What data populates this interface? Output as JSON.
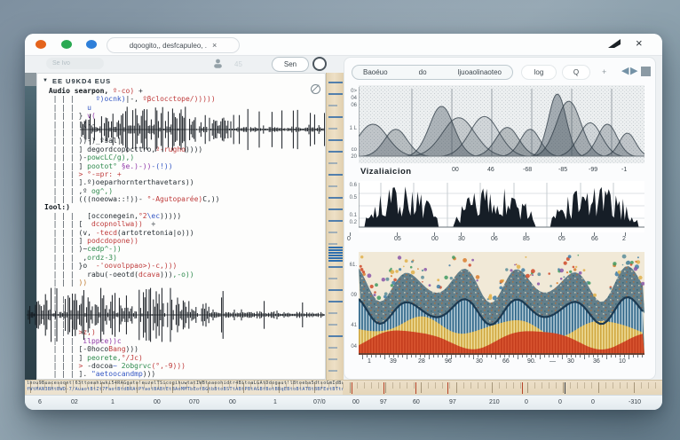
{
  "titlebar": {
    "tab_label": "dqoogito,, desfcapuleo, .",
    "tab_close": "×",
    "close_label": "×"
  },
  "left_panel": {
    "search_label": "Se Ivo",
    "badge": "45",
    "run_button": "Sen",
    "explorer_header": "EE U9KD4 EUS",
    "explorer_arrow": "▼",
    "code_lines": [
      [
        [
          " Audio searpon,",
          "b"
        ],
        [
          " º-co) ",
          "r"
        ],
        [
          "+",
          "d"
        ]
      ],
      [
        [
          "  | | |",
          "p"
        ],
        [
          "     ",
          "d"
        ],
        [
          "º)ocnk)",
          "bl"
        ],
        [
          "|-, ",
          "d"
        ],
        [
          "ºβclocctope/)))))",
          "r"
        ]
      ],
      [
        [
          "  | | |",
          "p"
        ],
        [
          "   ",
          "d"
        ],
        [
          "u",
          "bl"
        ]
      ],
      [
        [
          "  | | |",
          "p"
        ],
        [
          " } ",
          "d"
        ],
        [
          "v(",
          "pu"
        ]
      ],
      [
        [
          "  | | |",
          "p"
        ],
        [
          " [(--",
          "d"
        ]
      ],
      [
        [
          "  | | |",
          "p"
        ]
      ],
      [
        [
          "  | | |",
          "p"
        ],
        [
          " ))-)",
          "d"
        ],
        [
          "_ºsal|",
          "d"
        ]
      ],
      [
        [
          "  | | |",
          "p"
        ],
        [
          " ] ",
          "d"
        ],
        [
          "degordcopocttro,",
          "d"
        ],
        [
          "º-rugho",
          "r"
        ],
        [
          "))))",
          "d"
        ]
      ],
      [
        [
          "  | | |",
          "p"
        ],
        [
          " )-",
          "d"
        ],
        [
          "powcLC/g),)",
          "g"
        ]
      ],
      [
        [
          "  | | |",
          "p"
        ],
        [
          " ] ",
          "d"
        ],
        [
          "pootot° ",
          "g"
        ],
        [
          "§e.)-))",
          "pu"
        ],
        [
          "-(!))",
          "bl"
        ]
      ],
      [
        [
          "  | | |",
          "p"
        ],
        [
          " ",
          "d"
        ],
        [
          "> °-=pr: +",
          "r"
        ]
      ],
      [
        [
          "  | | |",
          "p"
        ],
        [
          " ].",
          "d"
        ],
        [
          "º)oeparhornterthavetars))",
          "d"
        ]
      ],
      [
        [
          "  | | |",
          "p"
        ],
        [
          " ,º ",
          "d"
        ],
        [
          "og^,)",
          "g"
        ]
      ],
      [
        [
          "  | | |",
          "p"
        ],
        [
          " (((noeowa::!))- ",
          "d"
        ],
        [
          "°-Agutoparée)",
          "r"
        ],
        [
          "C,))",
          "d"
        ]
      ],
      [
        [
          "Iool:)",
          "b"
        ]
      ],
      [
        [
          "  | | |",
          "p"
        ],
        [
          "   [occonegein,",
          "d"
        ],
        [
          "°2",
          "r"
        ],
        [
          "\\ec",
          "bl"
        ],
        [
          ")))))",
          "d"
        ]
      ],
      [
        [
          "  | | |",
          "p"
        ],
        [
          " [  ",
          "d"
        ],
        [
          "dcopnollwa))",
          "r"
        ],
        [
          "  ÷",
          "d"
        ]
      ],
      [
        [
          "  | | |",
          "p"
        ],
        [
          " (v, ",
          "d"
        ],
        [
          "-tecd",
          "r"
        ],
        [
          "(artotretonia|o)))",
          "d"
        ]
      ],
      [
        [
          "  | | |",
          "p"
        ],
        [
          " ] ",
          "d"
        ],
        [
          "podcdopone))",
          "r"
        ]
      ],
      [
        [
          "  | | |",
          "p"
        ],
        [
          " )~",
          "d"
        ],
        [
          "cedp^-))",
          "g"
        ]
      ],
      [
        [
          "  | | |",
          "p"
        ],
        [
          "  ,",
          "d"
        ],
        [
          "ordz-3)",
          "g"
        ]
      ],
      [
        [
          "  | | |",
          "p"
        ],
        [
          " }o  ",
          "d"
        ],
        [
          "-'oovolppao>)-c,)))",
          "r"
        ]
      ],
      [
        [
          "  | | |",
          "p"
        ],
        [
          "   rabu(-oeotd(",
          "d"
        ],
        [
          "dcava",
          "r"
        ],
        [
          ")))",
          "d"
        ],
        [
          ",-o))",
          "g"
        ]
      ],
      [
        [
          "  | | |",
          "p"
        ],
        [
          " ))",
          "o"
        ]
      ],
      [
        [
          "  |",
          "p"
        ]
      ],
      [
        [
          "  | |",
          "p"
        ]
      ],
      [
        [
          "  | |",
          "p"
        ]
      ],
      [
        [
          "  | |",
          "p"
        ]
      ],
      [
        [
          "  | | |",
          "p"
        ]
      ],
      [
        [
          "  | | |",
          "p"
        ],
        [
          " ",
          "d"
        ],
        [
          ">z,)",
          "r"
        ]
      ],
      [
        [
          "  | | |",
          "p"
        ],
        [
          "  ",
          "d"
        ],
        [
          "ilppce))c",
          "pu"
        ]
      ],
      [
        [
          "  | | |",
          "p"
        ],
        [
          " [-0hoco",
          "d"
        ],
        [
          "Bang",
          "r"
        ],
        [
          ")))",
          "d"
        ]
      ],
      [
        [
          "  | | |",
          "p"
        ],
        [
          " ] ",
          "d"
        ],
        [
          "peorete,",
          "g"
        ],
        [
          "°/Jc)",
          "r"
        ]
      ],
      [
        [
          "  | | |",
          "p"
        ],
        [
          " ",
          "d"
        ],
        [
          "> ",
          "r"
        ],
        [
          "-docoa",
          "d"
        ],
        [
          "~ ",
          "bl"
        ],
        [
          "2obgrvc",
          "g"
        ],
        [
          "(°,-9)))",
          "r"
        ]
      ],
      [
        [
          "  | | |",
          "p"
        ],
        [
          " ]. ",
          "d"
        ],
        [
          "\"aetoocandmp",
          "bl"
        ],
        [
          ")))",
          "d"
        ]
      ]
    ]
  },
  "right_panel": {
    "tab_words": [
      "Baoéuo",
      "do",
      "ljuoaolinaoteo"
    ],
    "log_button": "log",
    "search_button": "Q",
    "plus_button": "+",
    "prev_icon": "◀",
    "next_icon": "▶",
    "viz_label": "Vizaliaicion"
  },
  "chart_data": [
    {
      "type": "line",
      "title": "",
      "xlabel": "Vizaliaicion",
      "x_ticks": [
        "00",
        "46",
        "-68",
        "-85",
        "-99",
        "-1"
      ],
      "y_ticks": [
        "0>",
        "04",
        "06",
        "1 L",
        "co",
        "20"
      ],
      "description": "overlapping grayscale gaussian envelopes on stippled background",
      "series": [
        {
          "name": "peak_center_fraction",
          "values": [
            0.05,
            0.13,
            0.29,
            0.35,
            0.44,
            0.52,
            0.6,
            0.695,
            0.735,
            0.81,
            0.87,
            0.94
          ]
        },
        {
          "name": "peak_height_fraction",
          "values": [
            0.5,
            0.42,
            0.78,
            0.6,
            0.62,
            0.45,
            0.42,
            0.97,
            0.86,
            0.52,
            0.5,
            0.36
          ]
        }
      ]
    },
    {
      "type": "area",
      "title": "",
      "x_ticks": [
        "0",
        "05",
        "00",
        "30",
        "06",
        "85",
        "05",
        "66",
        "2"
      ],
      "y_ticks": [
        "0.6",
        "0.5",
        "0.1",
        "0.2"
      ],
      "description": "black jagged amplitude spectrum in three bursts",
      "series": [
        {
          "name": "burst_ranges_fraction",
          "values": [
            0.02,
            0.28,
            0.33,
            0.62,
            0.67,
            0.98
          ]
        }
      ]
    },
    {
      "type": "area",
      "title": "",
      "x_ticks": [
        "1",
        "39",
        "28",
        "96",
        "30",
        "66",
        "90.",
        "—",
        "30",
        "36",
        "10"
      ],
      "y_ticks": [
        "61.",
        "09",
        "41",
        "04"
      ],
      "description": "layered spectrogram: confetti stipple over blue stripes, yellow band, red area; 5 wave peaks",
      "series": [
        {
          "name": "wave_peak_count",
          "values": [
            5
          ]
        }
      ]
    }
  ],
  "statusbar": {
    "values": [
      "6",
      "02",
      "1",
      "00",
      "070",
      "00",
      "1",
      "07/0",
      "00",
      "97",
      "60",
      "97",
      "210",
      "0",
      "0",
      "0",
      "-310"
    ]
  },
  "bottom_strip": {
    "row1": "lhou9Buacesoqnt!63ttoeahiwki54RAGgato!euzelTSicogihuwtatIWBtoaoohidtr4BitoaLGAtDdogaut!lBtoeba5dtsoGmIdBassoadr66ay4tBo",
    "row2": "fWtMAN3BHtBWD-7/AuaotBtZt7FaotBtdBRAtPYaotBABtEtBAoMMTbEotBGtbBtoBSTtABtPBtAGBtBotBBqEBtoBtATBtBBFEotBTtoBtABbtoBtpBFb"
  }
}
